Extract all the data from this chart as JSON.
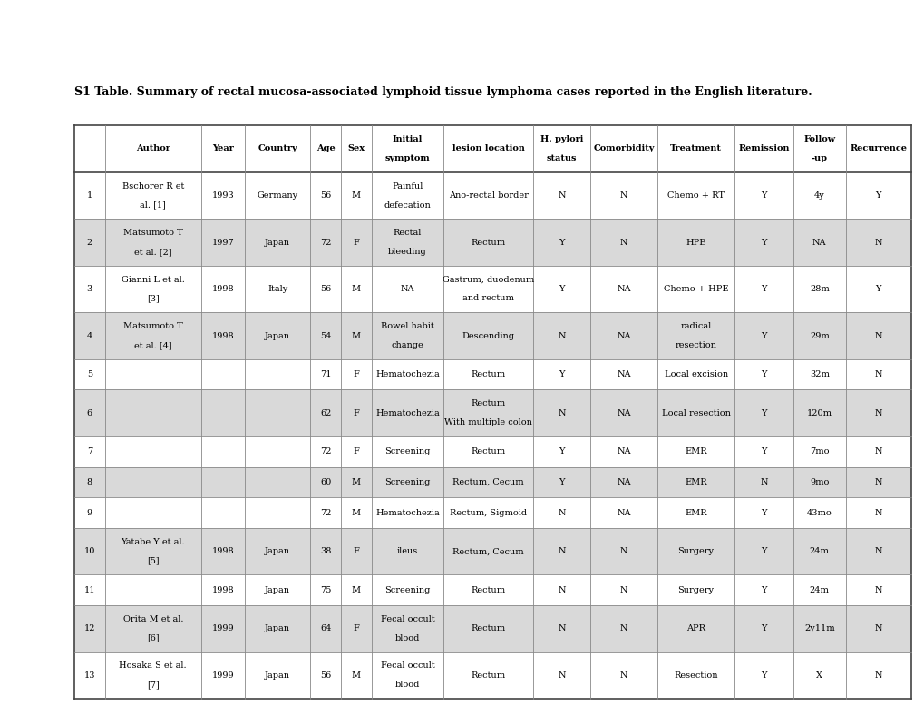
{
  "title": "S1 Table. Summary of rectal mucosa-associated lymphoid tissue lymphoma cases reported in the English literature.",
  "col_labels_line1": [
    "",
    "Author",
    "Year",
    "Country",
    "Age",
    "Sex",
    "Initial",
    "lesion location",
    "H. pylori",
    "Comorbidity",
    "Treatment",
    "Remission",
    "Follow",
    "Recurrence"
  ],
  "col_labels_line2": [
    "",
    "",
    "",
    "",
    "",
    "",
    "symptom",
    "",
    "status",
    "",
    "",
    "",
    "-up",
    ""
  ],
  "col_widths_pts": [
    28,
    88,
    40,
    60,
    28,
    28,
    66,
    82,
    52,
    62,
    70,
    54,
    48,
    60
  ],
  "rows": [
    {
      "num": "1",
      "author": [
        "Bschorer R et",
        "al. [1]"
      ],
      "year": "1993",
      "country": "Germany",
      "age": "56",
      "sex": "M",
      "symptom": [
        "Painful",
        "defecation"
      ],
      "location": [
        "Ano-rectal border",
        ""
      ],
      "h_pylori": "N",
      "comorbidity": "N",
      "treatment": [
        "Chemo + RT",
        ""
      ],
      "remission": "Y",
      "follow_up": "4y",
      "recurrence": "Y"
    },
    {
      "num": "2",
      "author": [
        "Matsumoto T",
        "et al. [2]"
      ],
      "year": "1997",
      "country": "Japan",
      "age": "72",
      "sex": "F",
      "symptom": [
        "Rectal",
        "bleeding"
      ],
      "location": [
        "Rectum",
        ""
      ],
      "h_pylori": "Y",
      "comorbidity": "N",
      "treatment": [
        "HPE",
        ""
      ],
      "remission": "Y",
      "follow_up": "NA",
      "recurrence": "N"
    },
    {
      "num": "3",
      "author": [
        "Gianni L et al.",
        "[3]"
      ],
      "year": "1998",
      "country": "Italy",
      "age": "56",
      "sex": "M",
      "symptom": [
        "NA",
        ""
      ],
      "location": [
        "Gastrum, duodenum",
        "and rectum"
      ],
      "h_pylori": "Y",
      "comorbidity": "NA",
      "treatment": [
        "Chemo + HPE",
        ""
      ],
      "remission": "Y",
      "follow_up": "28m",
      "recurrence": "Y"
    },
    {
      "num": "4",
      "author": [
        "Matsumoto T",
        "et al. [4]"
      ],
      "year": "1998",
      "country": "Japan",
      "age": "54",
      "sex": "M",
      "symptom": [
        "Bowel habit",
        "change"
      ],
      "location": [
        "Descending",
        ""
      ],
      "h_pylori": "N",
      "comorbidity": "NA",
      "treatment": [
        "radical",
        "resection"
      ],
      "remission": "Y",
      "follow_up": "29m",
      "recurrence": "N"
    },
    {
      "num": "5",
      "author": [
        "",
        ""
      ],
      "year": "",
      "country": "",
      "age": "71",
      "sex": "F",
      "symptom": [
        "Hematochezia",
        ""
      ],
      "location": [
        "Rectum",
        ""
      ],
      "h_pylori": "Y",
      "comorbidity": "NA",
      "treatment": [
        "Local excision",
        ""
      ],
      "remission": "Y",
      "follow_up": "32m",
      "recurrence": "N"
    },
    {
      "num": "6",
      "author": [
        "",
        ""
      ],
      "year": "",
      "country": "",
      "age": "62",
      "sex": "F",
      "symptom": [
        "Hematochezia",
        ""
      ],
      "location": [
        "Rectum",
        "With multiple colon"
      ],
      "h_pylori": "N",
      "comorbidity": "NA",
      "treatment": [
        "Local resection",
        ""
      ],
      "remission": "Y",
      "follow_up": "120m",
      "recurrence": "N"
    },
    {
      "num": "7",
      "author": [
        "",
        ""
      ],
      "year": "",
      "country": "",
      "age": "72",
      "sex": "F",
      "symptom": [
        "Screening",
        ""
      ],
      "location": [
        "Rectum",
        ""
      ],
      "h_pylori": "Y",
      "comorbidity": "NA",
      "treatment": [
        "EMR",
        ""
      ],
      "remission": "Y",
      "follow_up": "7mo",
      "recurrence": "N"
    },
    {
      "num": "8",
      "author": [
        "",
        ""
      ],
      "year": "",
      "country": "",
      "age": "60",
      "sex": "M",
      "symptom": [
        "Screening",
        ""
      ],
      "location": [
        "Rectum, Cecum",
        ""
      ],
      "h_pylori": "Y",
      "comorbidity": "NA",
      "treatment": [
        "EMR",
        ""
      ],
      "remission": "N",
      "follow_up": "9mo",
      "recurrence": "N"
    },
    {
      "num": "9",
      "author": [
        "",
        ""
      ],
      "year": "",
      "country": "",
      "age": "72",
      "sex": "M",
      "symptom": [
        "Hematochezia",
        ""
      ],
      "location": [
        "Rectum, Sigmoid",
        ""
      ],
      "h_pylori": "N",
      "comorbidity": "NA",
      "treatment": [
        "EMR",
        ""
      ],
      "remission": "Y",
      "follow_up": "43mo",
      "recurrence": "N"
    },
    {
      "num": "10",
      "author": [
        "Yatabe Y et al.",
        "[5]"
      ],
      "year": "1998",
      "country": "Japan",
      "age": "38",
      "sex": "F",
      "symptom": [
        "ileus",
        ""
      ],
      "location": [
        "Rectum, Cecum",
        ""
      ],
      "h_pylori": "N",
      "comorbidity": "N",
      "treatment": [
        "Surgery",
        ""
      ],
      "remission": "Y",
      "follow_up": "24m",
      "recurrence": "N"
    },
    {
      "num": "11",
      "author": [
        "",
        ""
      ],
      "year": "1998",
      "country": "Japan",
      "age": "75",
      "sex": "M",
      "symptom": [
        "Screening",
        ""
      ],
      "location": [
        "Rectum",
        ""
      ],
      "h_pylori": "N",
      "comorbidity": "N",
      "treatment": [
        "Surgery",
        ""
      ],
      "remission": "Y",
      "follow_up": "24m",
      "recurrence": "N"
    },
    {
      "num": "12",
      "author": [
        "Orita M et al.",
        "[6]"
      ],
      "year": "1999",
      "country": "Japan",
      "age": "64",
      "sex": "F",
      "symptom": [
        "Fecal occult",
        "blood"
      ],
      "location": [
        "Rectum",
        ""
      ],
      "h_pylori": "N",
      "comorbidity": "N",
      "treatment": [
        "APR",
        ""
      ],
      "remission": "Y",
      "follow_up": "2y11m",
      "recurrence": "N"
    },
    {
      "num": "13",
      "author": [
        "Hosaka S et al.",
        "[7]"
      ],
      "year": "1999",
      "country": "Japan",
      "age": "56",
      "sex": "M",
      "symptom": [
        "Fecal occult",
        "blood"
      ],
      "location": [
        "Rectum",
        ""
      ],
      "h_pylori": "N",
      "comorbidity": "N",
      "treatment": [
        "Resection",
        ""
      ],
      "remission": "Y",
      "follow_up": "X",
      "recurrence": "N"
    }
  ],
  "row_has_two_lines": [
    true,
    true,
    true,
    true,
    false,
    true,
    false,
    false,
    false,
    true,
    false,
    true,
    true
  ],
  "bg_white": "#ffffff",
  "bg_gray": "#d9d9d9",
  "border_color": "#808080",
  "text_color": "#000000",
  "font_size": 7.0,
  "title_font_size": 9.0
}
